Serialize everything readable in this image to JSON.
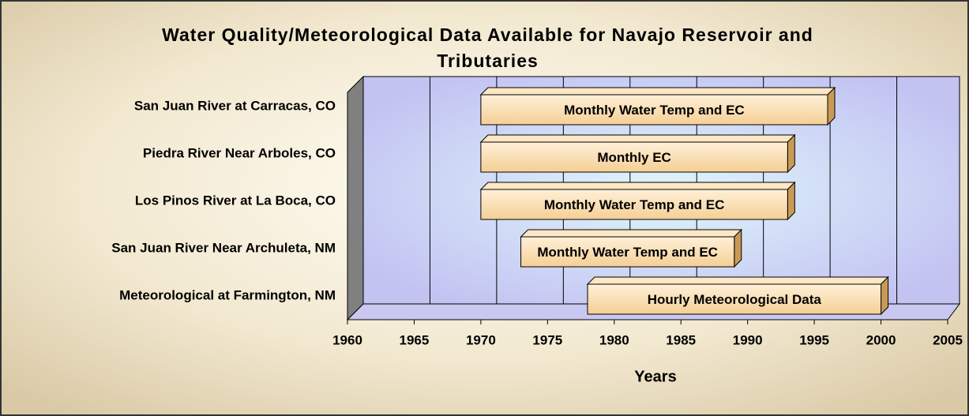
{
  "chart_data": {
    "type": "floating-bar",
    "title": "Water Quality/Meteorological  Data Available for Navajo Reservoir and Tributaries",
    "x_label": "Years",
    "categories": [
      "San Juan River at Carracas, CO",
      "Piedra River Near Arboles, CO",
      "Los Pinos River at La Boca, CO",
      "San Juan River Near Archuleta, NM",
      "Meteorological at Farmington, NM"
    ],
    "starts": [
      1970,
      1970,
      1970,
      1973,
      1978
    ],
    "ends": [
      1996,
      1993,
      1993,
      1989,
      2000
    ],
    "bar_labels": [
      "Monthly Water Temp and EC",
      "Monthly  EC",
      "Monthly Water Temp and EC",
      "Monthly Water Temp and EC",
      "Hourly Meteorological Data"
    ],
    "color": "#f5cf95",
    "xlim": [
      1960,
      2005
    ],
    "xticks": [
      1960,
      1965,
      1970,
      1975,
      1980,
      1985,
      1990,
      1995,
      2000,
      2005
    ],
    "grid": true
  }
}
